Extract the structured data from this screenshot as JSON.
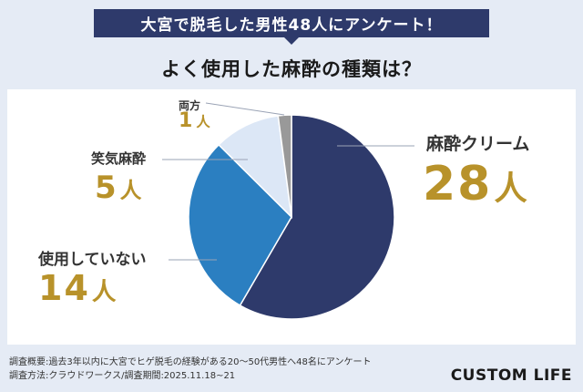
{
  "banner": {
    "text": "大宮で脱毛した男性48人にアンケート！"
  },
  "title": "よく使用した麻酔の種類は？",
  "chart_data": {
    "type": "pie",
    "unit": "人",
    "total": 48,
    "slices": [
      {
        "label": "麻酔クリーム",
        "value": 28,
        "display": "28",
        "color": "#2e3a6b"
      },
      {
        "label": "使用していない",
        "value": 14,
        "display": "14",
        "color": "#2b7fc1"
      },
      {
        "label": "笑気麻酔",
        "value": 5,
        "display": "5",
        "color": "#dce7f6"
      },
      {
        "label": "両方",
        "value": 1,
        "display": "1",
        "color": "#999999"
      }
    ]
  },
  "footer": {
    "line1": "調査概要:過去3年以内に大宮でヒゲ脱毛の経験がある20～50代男性へ48名にアンケート",
    "line2": "調査方法:クラウドワークス/調査期間:2025.11.18~21"
  },
  "logo": "CUSTOM LIFE"
}
